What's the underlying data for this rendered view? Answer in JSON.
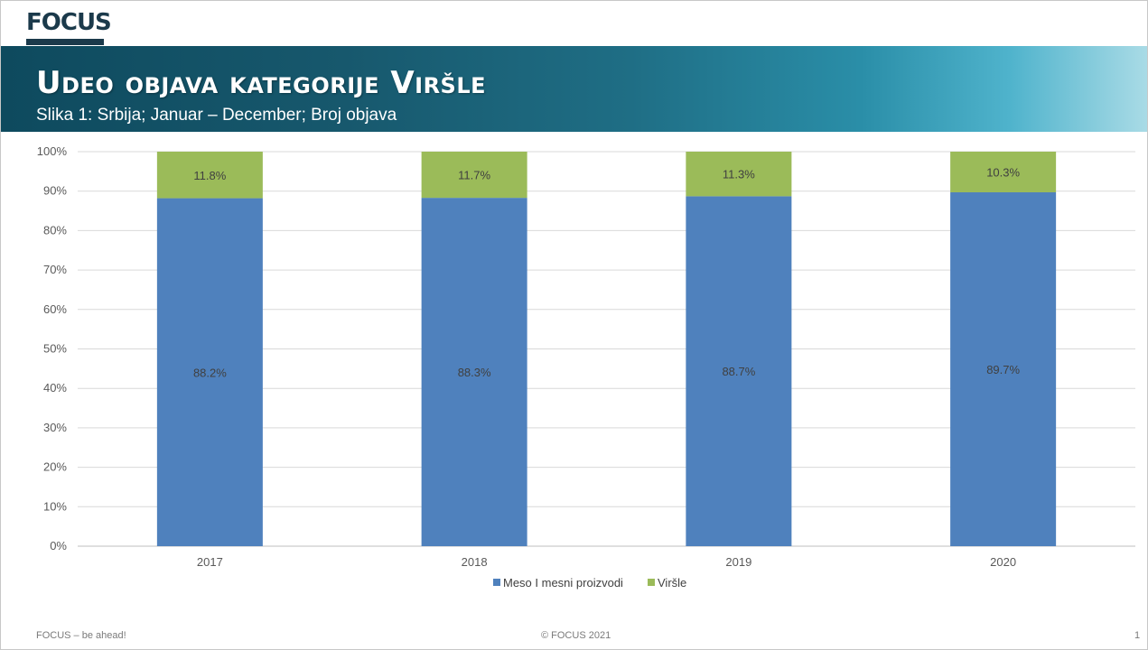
{
  "brand": {
    "logo_text": "FOCUS"
  },
  "header": {
    "title": "Udeo objava kategorije Viršle",
    "subtitle": "Slika 1: Srbija; Januar – December; Broj objava"
  },
  "chart_data": {
    "type": "bar",
    "stacked": true,
    "percent": true,
    "categories": [
      "2017",
      "2018",
      "2019",
      "2020"
    ],
    "series": [
      {
        "name": "Meso I mesni proizvodi",
        "values": [
          88.2,
          88.3,
          88.7,
          89.7
        ],
        "labels": [
          "88.2%",
          "88.3%",
          "88.7%",
          "89.7%"
        ],
        "color": "#4f81bd"
      },
      {
        "name": "Viršle",
        "values": [
          11.8,
          11.7,
          11.3,
          10.3
        ],
        "labels": [
          "11.8%",
          "11.7%",
          "11.3%",
          "10.3%"
        ],
        "color": "#9bbb59"
      }
    ],
    "y_ticks": [
      "0%",
      "10%",
      "20%",
      "30%",
      "40%",
      "50%",
      "60%",
      "70%",
      "80%",
      "90%",
      "100%"
    ],
    "ylim": [
      0,
      100
    ],
    "grid": true,
    "legend": "bottom-center"
  },
  "footer": {
    "left": "FOCUS – be ahead!",
    "center": "© FOCUS 2021",
    "page_number": "1"
  }
}
